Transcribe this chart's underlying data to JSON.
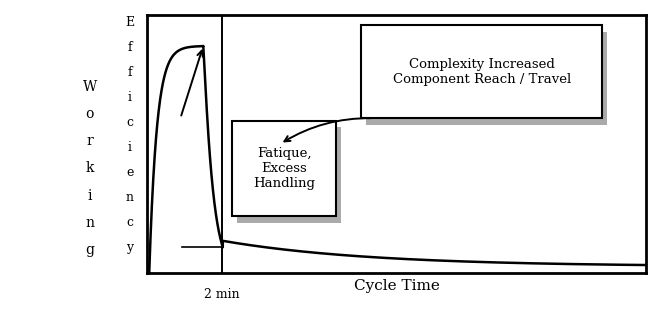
{
  "xlabel": "Cycle Time",
  "working_letters": [
    "W",
    "o",
    "r",
    "k",
    "i",
    "n",
    "g"
  ],
  "efficiency_letters": [
    "E",
    "f",
    "f",
    "i",
    "c",
    "i",
    "e",
    "n",
    "c",
    "y"
  ],
  "bg_color": "#ffffff",
  "plot_bg": "#ffffff",
  "outer_bg": "#ffffff",
  "curve_color": "#000000",
  "annotation_box1_text": "Complexity Increased\nComponent Reach / Travel",
  "annotation_box2_text": "Fatique,\nExcess\nHandling",
  "vline_label": "2 min",
  "vline_x": 1.8,
  "xlim": [
    0,
    12
  ],
  "ylim": [
    0,
    1
  ],
  "shadow_color": "#aaaaaa"
}
